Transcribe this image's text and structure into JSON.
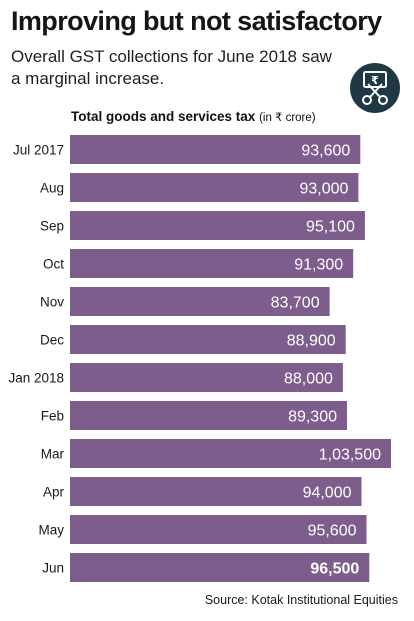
{
  "header": {
    "title": "Improving but not satisfactory",
    "subtitle": "Overall GST collections for June 2018 saw a marginal increase."
  },
  "badge": {
    "icon": "rupee-scissors-icon",
    "color": "#1e3844"
  },
  "chart_heading": {
    "main": "Total goods and services tax",
    "unit": "(in ₹ crore)"
  },
  "source": "Source: Kotak Institutional Equities",
  "colors": {
    "bar": "#7d5d8c",
    "label": "#ffffff"
  },
  "chart_data": {
    "type": "bar",
    "orientation": "horizontal",
    "title": "Total goods and services tax",
    "unit": "₹ crore",
    "categories": [
      "Jul 2017",
      "Aug",
      "Sep",
      "Oct",
      "Nov",
      "Dec",
      "Jan 2018",
      "Feb",
      "Mar",
      "Apr",
      "May",
      "Jun"
    ],
    "values": [
      93600,
      93000,
      95100,
      91300,
      83700,
      88900,
      88000,
      89300,
      103500,
      94000,
      95600,
      96500
    ],
    "value_labels": [
      "93,600",
      "93,000",
      "95,100",
      "91,300",
      "83,700",
      "88,900",
      "88,000",
      "89,300",
      "1,03,500",
      "94,000",
      "95,600",
      "96,500"
    ],
    "highlight_index": 11,
    "grid": false,
    "legend": "none"
  }
}
